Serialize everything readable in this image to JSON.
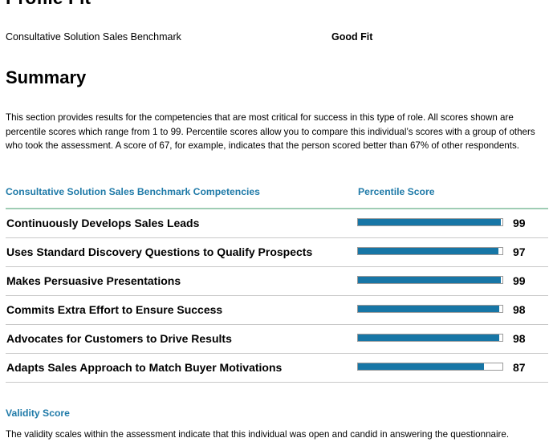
{
  "document": {
    "profile_fit_heading": "Profile Fit",
    "benchmark_label": "Consultative Solution Sales Benchmark",
    "fit_result": "Good Fit",
    "summary_heading": "Summary",
    "summary_paragraph": "This section provides results for the competencies that are most critical for success in this type of role. All scores shown are percentile scores which range from 1 to 99. Percentile scores allow you to compare this individual’s scores with a group of others who took the assessment. A score of 67, for example, indicates that the person scored better than 67% of other respondents."
  },
  "table": {
    "competency_column": "Consultative Solution Sales Benchmark Competencies",
    "score_column": "Percentile Score",
    "rows": [
      {
        "name": "Continuously Develops Sales Leads",
        "score": 99
      },
      {
        "name": "Uses Standard Discovery Questions to Qualify Prospects",
        "score": 97
      },
      {
        "name": "Makes Persuasive Presentations",
        "score": 99
      },
      {
        "name": "Commits Extra Effort to Ensure Success",
        "score": 98
      },
      {
        "name": "Advocates for Customers to Drive Results",
        "score": 98
      },
      {
        "name": "Adapts Sales Approach to Match Buyer Motivations",
        "score": 87
      }
    ],
    "score_max": 100
  },
  "validity": {
    "heading": "Validity Score",
    "text": "The validity scales within the assessment indicate that this individual was open and candid in answering the questionnaire."
  },
  "colors": {
    "accent_text": "#1f7aa8",
    "bar_fill": "#1776a6",
    "header_rule": "#9fcdb4",
    "row_divider": "#c8c8c8"
  }
}
